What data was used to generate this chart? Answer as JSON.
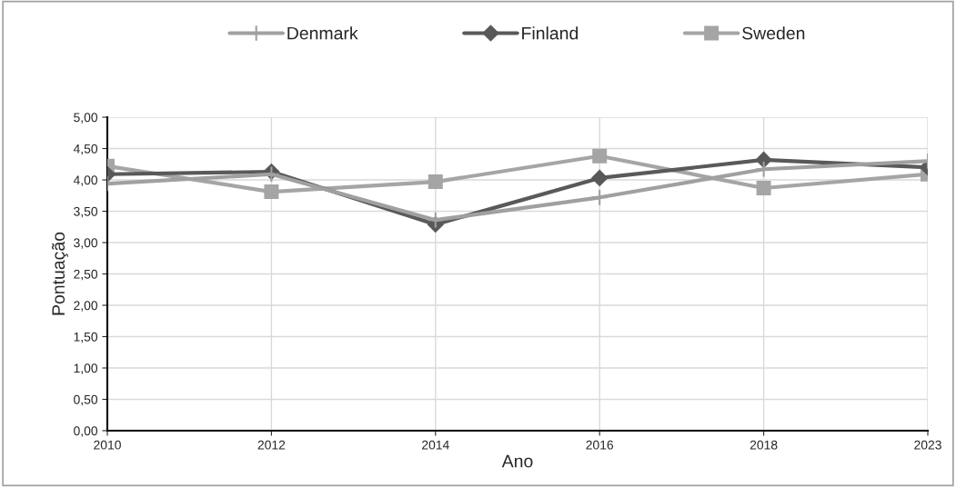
{
  "chart_data": {
    "type": "line",
    "xlabel": "Ano",
    "ylabel": "Pontuação",
    "categories": [
      "2010",
      "2012",
      "2014",
      "2016",
      "2018",
      "2023"
    ],
    "series": [
      {
        "name": "Denmark",
        "color": "#a0a0a0",
        "marker": "cross",
        "values": [
          3.94,
          4.09,
          3.36,
          3.72,
          4.17,
          4.3
        ]
      },
      {
        "name": "Finland",
        "color": "#595959",
        "marker": "diamond",
        "values": [
          4.09,
          4.13,
          3.29,
          4.03,
          4.32,
          4.2
        ]
      },
      {
        "name": "Sweden",
        "color": "#a5a5a5",
        "marker": "square",
        "values": [
          4.22,
          3.81,
          3.97,
          4.38,
          3.87,
          4.09
        ]
      }
    ],
    "ylim": [
      0,
      5
    ],
    "yticks": [
      {
        "value": 0,
        "label": "0,00"
      },
      {
        "value": 0.5,
        "label": "0,50"
      },
      {
        "value": 1,
        "label": "1,00"
      },
      {
        "value": 1.5,
        "label": "1,50"
      },
      {
        "value": 2,
        "label": "2,00"
      },
      {
        "value": 2.5,
        "label": "2,50"
      },
      {
        "value": 3,
        "label": "3,00"
      },
      {
        "value": 3.5,
        "label": "3,50"
      },
      {
        "value": 4,
        "label": "4,00"
      },
      {
        "value": 4.5,
        "label": "4,50"
      },
      {
        "value": 5,
        "label": "5,00"
      }
    ],
    "grid": true,
    "legend": "top",
    "line_style": "solid"
  }
}
